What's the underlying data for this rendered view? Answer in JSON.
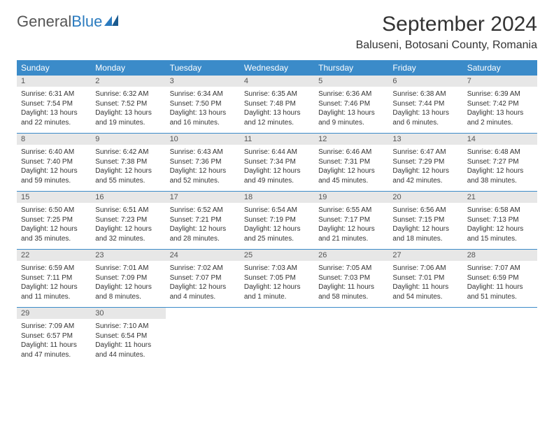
{
  "brand": {
    "part1": "General",
    "part2": "Blue"
  },
  "title": {
    "month": "September 2024",
    "location": "Baluseni, Botosani County, Romania"
  },
  "colors": {
    "header_bg": "#3b8bc9",
    "header_fg": "#ffffff",
    "day_num_bg": "#e7e7e7",
    "rule": "#3b8bc9",
    "brand_blue": "#2b7bbf"
  },
  "weekdays": [
    "Sunday",
    "Monday",
    "Tuesday",
    "Wednesday",
    "Thursday",
    "Friday",
    "Saturday"
  ],
  "days": [
    {
      "n": "1",
      "sr": "Sunrise: 6:31 AM",
      "ss": "Sunset: 7:54 PM",
      "dl": "Daylight: 13 hours and 22 minutes."
    },
    {
      "n": "2",
      "sr": "Sunrise: 6:32 AM",
      "ss": "Sunset: 7:52 PM",
      "dl": "Daylight: 13 hours and 19 minutes."
    },
    {
      "n": "3",
      "sr": "Sunrise: 6:34 AM",
      "ss": "Sunset: 7:50 PM",
      "dl": "Daylight: 13 hours and 16 minutes."
    },
    {
      "n": "4",
      "sr": "Sunrise: 6:35 AM",
      "ss": "Sunset: 7:48 PM",
      "dl": "Daylight: 13 hours and 12 minutes."
    },
    {
      "n": "5",
      "sr": "Sunrise: 6:36 AM",
      "ss": "Sunset: 7:46 PM",
      "dl": "Daylight: 13 hours and 9 minutes."
    },
    {
      "n": "6",
      "sr": "Sunrise: 6:38 AM",
      "ss": "Sunset: 7:44 PM",
      "dl": "Daylight: 13 hours and 6 minutes."
    },
    {
      "n": "7",
      "sr": "Sunrise: 6:39 AM",
      "ss": "Sunset: 7:42 PM",
      "dl": "Daylight: 13 hours and 2 minutes."
    },
    {
      "n": "8",
      "sr": "Sunrise: 6:40 AM",
      "ss": "Sunset: 7:40 PM",
      "dl": "Daylight: 12 hours and 59 minutes."
    },
    {
      "n": "9",
      "sr": "Sunrise: 6:42 AM",
      "ss": "Sunset: 7:38 PM",
      "dl": "Daylight: 12 hours and 55 minutes."
    },
    {
      "n": "10",
      "sr": "Sunrise: 6:43 AM",
      "ss": "Sunset: 7:36 PM",
      "dl": "Daylight: 12 hours and 52 minutes."
    },
    {
      "n": "11",
      "sr": "Sunrise: 6:44 AM",
      "ss": "Sunset: 7:34 PM",
      "dl": "Daylight: 12 hours and 49 minutes."
    },
    {
      "n": "12",
      "sr": "Sunrise: 6:46 AM",
      "ss": "Sunset: 7:31 PM",
      "dl": "Daylight: 12 hours and 45 minutes."
    },
    {
      "n": "13",
      "sr": "Sunrise: 6:47 AM",
      "ss": "Sunset: 7:29 PM",
      "dl": "Daylight: 12 hours and 42 minutes."
    },
    {
      "n": "14",
      "sr": "Sunrise: 6:48 AM",
      "ss": "Sunset: 7:27 PM",
      "dl": "Daylight: 12 hours and 38 minutes."
    },
    {
      "n": "15",
      "sr": "Sunrise: 6:50 AM",
      "ss": "Sunset: 7:25 PM",
      "dl": "Daylight: 12 hours and 35 minutes."
    },
    {
      "n": "16",
      "sr": "Sunrise: 6:51 AM",
      "ss": "Sunset: 7:23 PM",
      "dl": "Daylight: 12 hours and 32 minutes."
    },
    {
      "n": "17",
      "sr": "Sunrise: 6:52 AM",
      "ss": "Sunset: 7:21 PM",
      "dl": "Daylight: 12 hours and 28 minutes."
    },
    {
      "n": "18",
      "sr": "Sunrise: 6:54 AM",
      "ss": "Sunset: 7:19 PM",
      "dl": "Daylight: 12 hours and 25 minutes."
    },
    {
      "n": "19",
      "sr": "Sunrise: 6:55 AM",
      "ss": "Sunset: 7:17 PM",
      "dl": "Daylight: 12 hours and 21 minutes."
    },
    {
      "n": "20",
      "sr": "Sunrise: 6:56 AM",
      "ss": "Sunset: 7:15 PM",
      "dl": "Daylight: 12 hours and 18 minutes."
    },
    {
      "n": "21",
      "sr": "Sunrise: 6:58 AM",
      "ss": "Sunset: 7:13 PM",
      "dl": "Daylight: 12 hours and 15 minutes."
    },
    {
      "n": "22",
      "sr": "Sunrise: 6:59 AM",
      "ss": "Sunset: 7:11 PM",
      "dl": "Daylight: 12 hours and 11 minutes."
    },
    {
      "n": "23",
      "sr": "Sunrise: 7:01 AM",
      "ss": "Sunset: 7:09 PM",
      "dl": "Daylight: 12 hours and 8 minutes."
    },
    {
      "n": "24",
      "sr": "Sunrise: 7:02 AM",
      "ss": "Sunset: 7:07 PM",
      "dl": "Daylight: 12 hours and 4 minutes."
    },
    {
      "n": "25",
      "sr": "Sunrise: 7:03 AM",
      "ss": "Sunset: 7:05 PM",
      "dl": "Daylight: 12 hours and 1 minute."
    },
    {
      "n": "26",
      "sr": "Sunrise: 7:05 AM",
      "ss": "Sunset: 7:03 PM",
      "dl": "Daylight: 11 hours and 58 minutes."
    },
    {
      "n": "27",
      "sr": "Sunrise: 7:06 AM",
      "ss": "Sunset: 7:01 PM",
      "dl": "Daylight: 11 hours and 54 minutes."
    },
    {
      "n": "28",
      "sr": "Sunrise: 7:07 AM",
      "ss": "Sunset: 6:59 PM",
      "dl": "Daylight: 11 hours and 51 minutes."
    },
    {
      "n": "29",
      "sr": "Sunrise: 7:09 AM",
      "ss": "Sunset: 6:57 PM",
      "dl": "Daylight: 11 hours and 47 minutes."
    },
    {
      "n": "30",
      "sr": "Sunrise: 7:10 AM",
      "ss": "Sunset: 6:54 PM",
      "dl": "Daylight: 11 hours and 44 minutes."
    }
  ]
}
